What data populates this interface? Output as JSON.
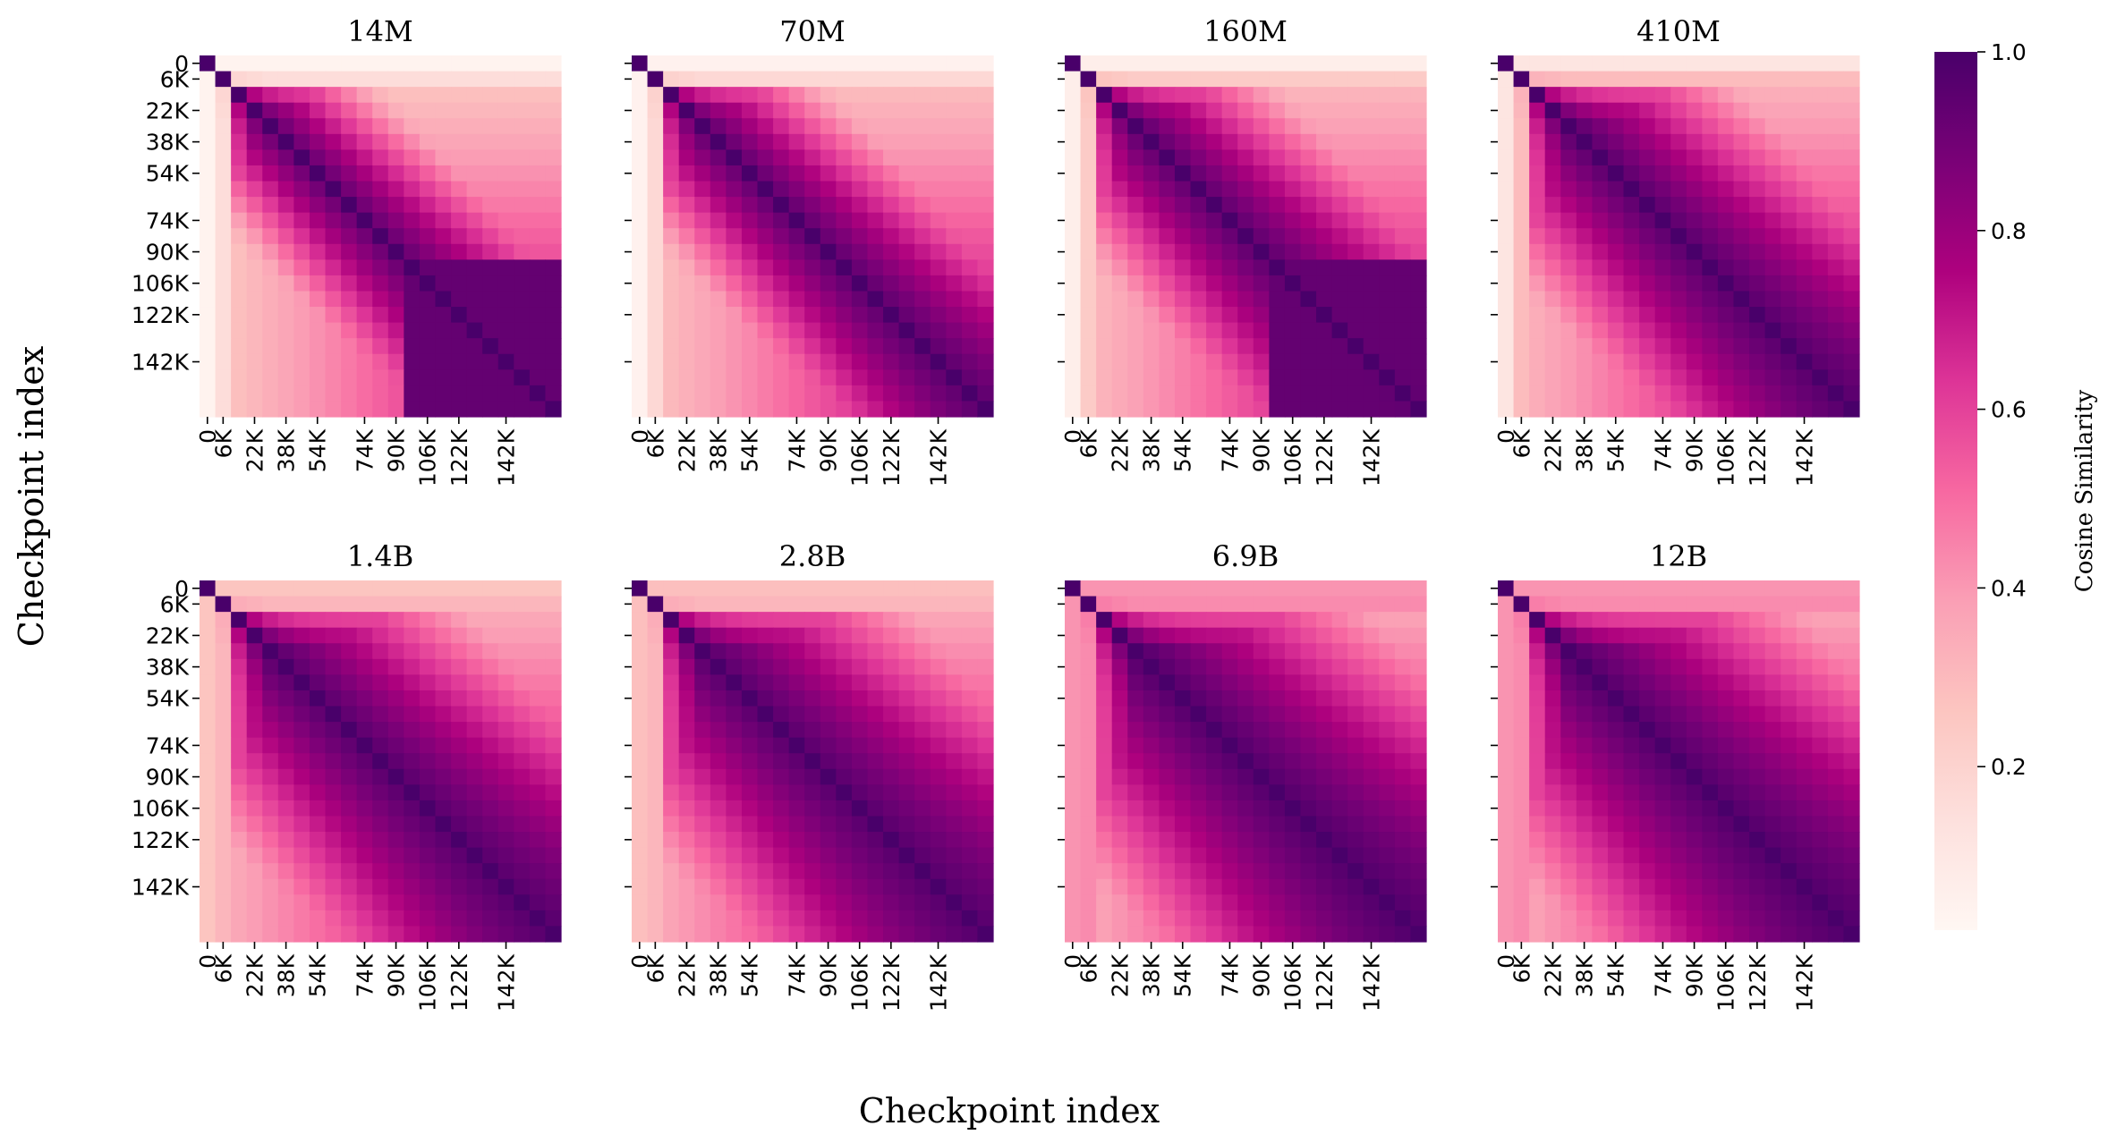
{
  "figure": {
    "xlabel": "Checkpoint index",
    "ylabel": "Checkpoint index",
    "colorbar_label": "Cosine Similarity",
    "colorbar_ticks": [
      "1.0",
      "0.8",
      "0.6",
      "0.4",
      "0.2"
    ],
    "colorbar_tick_values": [
      1.0,
      0.8,
      0.6,
      0.4,
      0.2
    ],
    "colormap": "RdPu",
    "colors": {
      "low": "#fff7f3",
      "high": "#49006a"
    }
  },
  "chart_data": {
    "type": "heatmap",
    "description_axes": "square cosine-similarity matrices between training checkpoints, one per model size",
    "grid_size": 23,
    "vmin": 0.0,
    "vmax": 1.0,
    "tick_labels": [
      "0",
      "6K",
      "22K",
      "38K",
      "54K",
      "74K",
      "90K",
      "106K",
      "122K",
      "142K"
    ],
    "panels": [
      {
        "title": "14M",
        "edge_low": 0.02,
        "edge_high": 0.14,
        "late_floor": 0.82,
        "decay_k": 0.045,
        "near": 0.95,
        "late_block": true
      },
      {
        "title": "70M",
        "edge_low": 0.03,
        "edge_high": 0.16,
        "late_floor": 0.84,
        "decay_k": 0.04,
        "near": 0.96,
        "late_block": false
      },
      {
        "title": "160M",
        "edge_low": 0.05,
        "edge_high": 0.22,
        "late_floor": 0.86,
        "decay_k": 0.035,
        "near": 0.96,
        "late_block": true
      },
      {
        "title": "410M",
        "edge_low": 0.1,
        "edge_high": 0.28,
        "late_floor": 0.88,
        "decay_k": 0.03,
        "near": 0.97,
        "late_block": false
      },
      {
        "title": "1.4B",
        "edge_low": 0.25,
        "edge_high": 0.3,
        "late_floor": 0.9,
        "decay_k": 0.026,
        "near": 0.97,
        "late_block": false
      },
      {
        "title": "2.8B",
        "edge_low": 0.27,
        "edge_high": 0.3,
        "late_floor": 0.91,
        "decay_k": 0.024,
        "near": 0.97,
        "late_block": false
      },
      {
        "title": "6.9B",
        "edge_low": 0.4,
        "edge_high": 0.42,
        "late_floor": 0.92,
        "decay_k": 0.022,
        "near": 0.98,
        "late_block": false
      },
      {
        "title": "12B",
        "edge_low": 0.4,
        "edge_high": 0.42,
        "late_floor": 0.92,
        "decay_k": 0.022,
        "near": 0.98,
        "late_block": false
      }
    ]
  }
}
